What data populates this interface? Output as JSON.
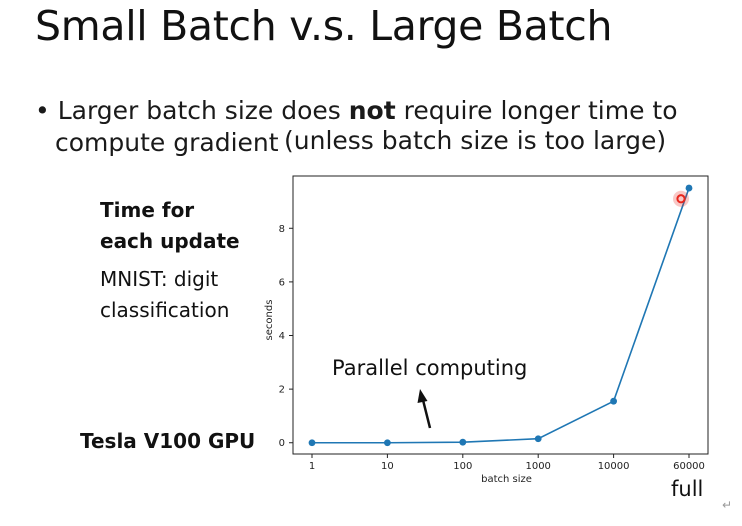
{
  "slide": {
    "title": "Small Batch v.s. Large Batch",
    "bullet_prefix": "Larger batch size does ",
    "bullet_bold": "not",
    "bullet_rest": " require longer time to",
    "bullet_line2": "compute gradient",
    "bullet_paren": "(unless batch size is too large)"
  },
  "labels": {
    "time_line1": "Time for",
    "time_line2": "each update",
    "mnist_line1": "MNIST: digit",
    "mnist_line2": "classification",
    "gpu": "Tesla V100 GPU",
    "parallel": "Parallel computing",
    "full": "full",
    "return_mark": "↵"
  },
  "chart_data": {
    "type": "line",
    "categories": [
      "1",
      "10",
      "100",
      "1000",
      "10000",
      "60000"
    ],
    "values": [
      0.0,
      0.0,
      0.02,
      0.15,
      1.55,
      9.5
    ],
    "xlabel": "batch size",
    "ylabel": "seconds",
    "yticks": [
      0,
      2,
      4,
      6,
      8
    ],
    "ylim": [
      -0.42,
      9.95
    ],
    "line_color": "#1f77b4",
    "highlight_color": "#e8251c",
    "highlight_value": 9.1
  }
}
